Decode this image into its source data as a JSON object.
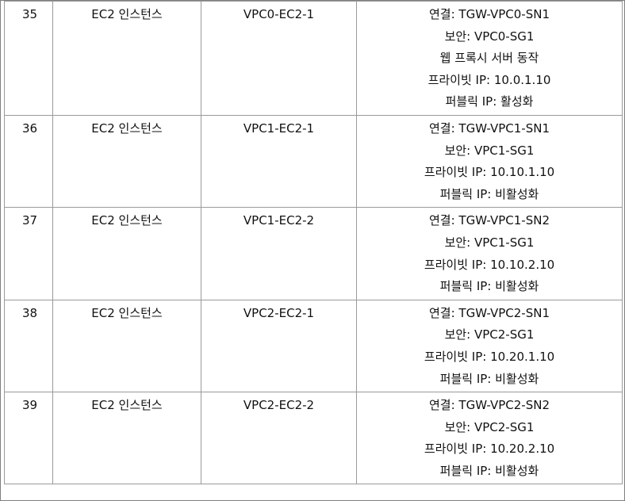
{
  "rows": [
    {
      "num": "35",
      "type": "EC2 인스턴스",
      "name": "VPC0-EC2-1",
      "desc": [
        "연결: TGW-VPC0-SN1",
        "보안: VPC0-SG1",
        "웹 프록시 서버 동작",
        "프라이빗 IP: 10.0.1.10",
        "퍼블릭 IP: 활성화"
      ]
    },
    {
      "num": "36",
      "type": "EC2 인스턴스",
      "name": "VPC1-EC2-1",
      "desc": [
        "연결: TGW-VPC1-SN1",
        "보안: VPC1-SG1",
        "프라이빗 IP: 10.10.1.10",
        "퍼블릭 IP: 비활성화"
      ]
    },
    {
      "num": "37",
      "type": "EC2 인스턴스",
      "name": "VPC1-EC2-2",
      "desc": [
        "연결: TGW-VPC1-SN2",
        "보안: VPC1-SG1",
        "프라이빗 IP: 10.10.2.10",
        "퍼블릭 IP: 비활성화"
      ]
    },
    {
      "num": "38",
      "type": "EC2 인스턴스",
      "name": "VPC2-EC2-1",
      "desc": [
        "연결: TGW-VPC2-SN1",
        "보안: VPC2-SG1",
        "프라이빗 IP: 10.20.1.10",
        "퍼블릭 IP: 비활성화"
      ]
    },
    {
      "num": "39",
      "type": "EC2 인스턴스",
      "name": "VPC2-EC2-2",
      "desc": [
        "연결: TGW-VPC2-SN2",
        "보안: VPC2-SG1",
        "프라이빗 IP: 10.20.2.10",
        "퍼블릭 IP: 비활성화"
      ]
    }
  ]
}
